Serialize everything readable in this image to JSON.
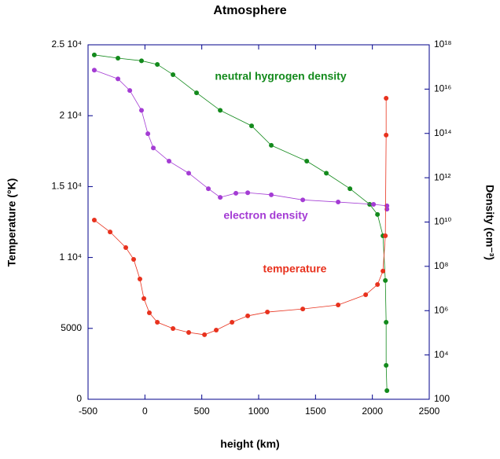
{
  "chart_data": {
    "type": "line",
    "title": "Atmosphere",
    "x_label": "height (km)",
    "y_label": "Temperature (°K)",
    "y2_label": "Density (cm⁻³)",
    "xlim": [
      -500,
      2500
    ],
    "xticks": [
      -500,
      0,
      500,
      1000,
      1500,
      2000,
      2500
    ],
    "ylim": [
      0,
      25000
    ],
    "yticks": [
      0,
      5000,
      {
        "value": 10000,
        "label": "1 10⁴"
      },
      {
        "value": 15000,
        "label": "1.5 10⁴"
      },
      {
        "value": 20000,
        "label": "2 10⁴"
      },
      {
        "value": 25000,
        "label": "2.5 10⁴"
      }
    ],
    "y2lim": [
      100,
      1e+18
    ],
    "y2log": true,
    "y2ticks": [
      100,
      {
        "value": 10000.0,
        "label": "10⁴"
      },
      {
        "value": 1000000.0,
        "label": "10⁶"
      },
      {
        "value": 100000000.0,
        "label": "10⁸"
      },
      {
        "value": 10000000000.0,
        "label": "10¹⁰"
      },
      {
        "value": 1000000000000.0,
        "label": "10¹²"
      },
      {
        "value": 100000000000000.0,
        "label": "10¹⁴"
      },
      {
        "value": 1e+16,
        "label": "10¹⁶"
      },
      {
        "value": 1e+18,
        "label": "10¹⁸"
      }
    ],
    "series": [
      {
        "name": "neutral hygrogen density",
        "color": "#138a1c",
        "axis": "y2",
        "x": [
          -445,
          -237,
          -30,
          109,
          247,
          454,
          662,
          938,
          1111,
          1423,
          1595,
          1803,
          1976,
          2045,
          2093,
          2114,
          2121,
          2121,
          2128
        ],
        "values": [
          3.5e+17,
          2.5e+17,
          1.9e+17,
          1.3e+17,
          4.5e+16,
          6800000000000000.0,
          1100000000000000.0,
          220000000000000.0,
          29000000000000.0,
          5600000000000.0,
          1600000000000.0,
          320000000000.0,
          63000000000.0,
          22000000000.0,
          2400000000.0,
          23000000.0,
          300000.0,
          3400,
          245
        ]
      },
      {
        "name": "electron density",
        "color": "#a43cd4",
        "axis": "y2",
        "x": [
          -445,
          -237,
          -133,
          -30,
          26,
          74,
          212,
          385,
          558,
          662,
          800,
          904,
          1111,
          1388,
          1699,
          2010,
          2128,
          2128
        ],
        "values": [
          7.2e+16,
          2.9e+16,
          8700000000000000.0,
          1100000000000000.0,
          97000000000000.0,
          22000000000000.0,
          5600000000000.0,
          1600000000000.0,
          320000000000.0,
          130000000000.0,
          200000000000.0,
          210000000000.0,
          170000000000.0,
          100000000000.0,
          80000000000.0,
          63000000000.0,
          54000000000.0,
          38000000000.0
        ]
      },
      {
        "name": "temperature",
        "color": "#e8321e",
        "x": [
          -445,
          -306,
          -168,
          -99,
          -44,
          -9,
          39,
          109,
          247,
          385,
          524,
          627,
          766,
          904,
          1077,
          1388,
          1699,
          1941,
          2045,
          2093,
          2114,
          2121,
          2121
        ],
        "values": [
          12640,
          11800,
          10700,
          9870,
          8480,
          7100,
          6100,
          5430,
          4990,
          4710,
          4550,
          4880,
          5430,
          5880,
          6150,
          6370,
          6650,
          7370,
          8090,
          9040,
          11530,
          18630,
          21230
        ]
      }
    ]
  }
}
